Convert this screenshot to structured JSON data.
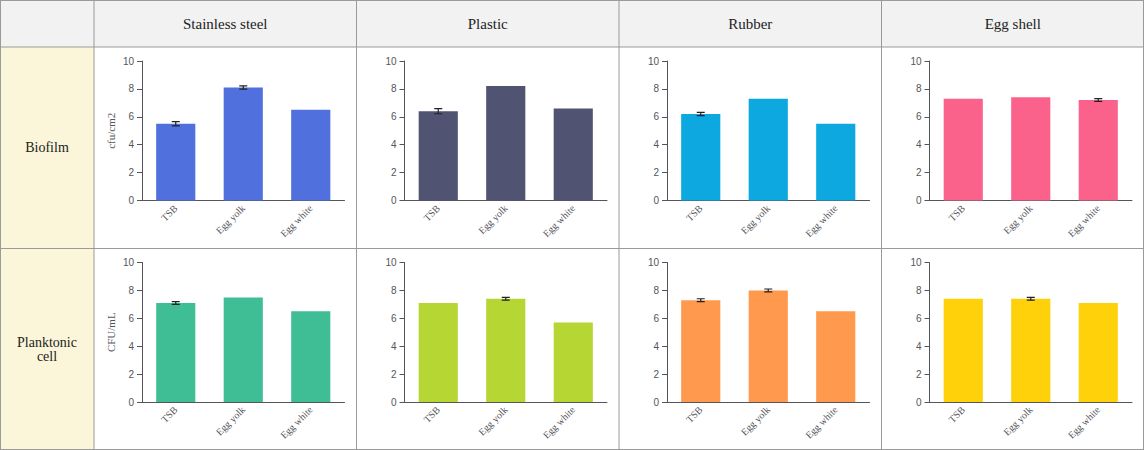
{
  "chart_data": [
    {
      "type": "bar",
      "title": "Stainless steel",
      "annotations": [
        "Biofilm"
      ],
      "ylabel": "cfu/cm2",
      "categories": [
        "TSB",
        "Egg yolk",
        "Egg white"
      ],
      "values": [
        5.5,
        8.1,
        6.5
      ],
      "errors": [
        0.15,
        0.12,
        0.0
      ],
      "ylim": [
        0,
        10
      ],
      "yticks": [
        0,
        2,
        4,
        6,
        8,
        10
      ],
      "grid": false
    },
    {
      "type": "bar",
      "title": "Plastic",
      "categories": [
        "TSB",
        "Egg yolk",
        "Egg white"
      ],
      "values": [
        6.4,
        8.2,
        6.6
      ],
      "errors": [
        0.18,
        0.0,
        0.0
      ],
      "ylim": [
        0,
        10
      ],
      "yticks": [
        0,
        2,
        4,
        6,
        8,
        10
      ],
      "grid": false
    },
    {
      "type": "bar",
      "title": "Rubber",
      "categories": [
        "TSB",
        "Egg yolk",
        "Egg white"
      ],
      "values": [
        6.2,
        7.3,
        5.5
      ],
      "errors": [
        0.12,
        0.0,
        0.0
      ],
      "ylim": [
        0,
        10
      ],
      "yticks": [
        0,
        2,
        4,
        6,
        8,
        10
      ],
      "grid": false
    },
    {
      "type": "bar",
      "title": "Egg shell",
      "categories": [
        "TSB",
        "Egg yolk",
        "Egg white"
      ],
      "values": [
        7.3,
        7.4,
        7.2
      ],
      "errors": [
        0.0,
        0.0,
        0.1
      ],
      "ylim": [
        0,
        10
      ],
      "yticks": [
        0,
        2,
        4,
        6,
        8,
        10
      ],
      "grid": false
    },
    {
      "type": "bar",
      "annotations": [
        "Planktonic\ncell"
      ],
      "ylabel": "CFU/mL",
      "categories": [
        "TSB",
        "Egg yolk",
        "Egg white"
      ],
      "values": [
        7.1,
        7.5,
        6.5
      ],
      "errors": [
        0.1,
        0.0,
        0.0
      ],
      "ylim": [
        0,
        10
      ],
      "yticks": [
        0,
        2,
        4,
        6,
        8,
        10
      ],
      "grid": false
    },
    {
      "type": "bar",
      "categories": [
        "TSB",
        "Egg yolk",
        "Egg white"
      ],
      "values": [
        7.1,
        7.4,
        5.7
      ],
      "errors": [
        0.0,
        0.1,
        0.0
      ],
      "ylim": [
        0,
        10
      ],
      "yticks": [
        0,
        2,
        4,
        6,
        8,
        10
      ],
      "grid": false
    },
    {
      "type": "bar",
      "categories": [
        "TSB",
        "Egg yolk",
        "Egg white"
      ],
      "values": [
        7.3,
        8.0,
        6.5
      ],
      "errors": [
        0.1,
        0.1,
        0.0
      ],
      "ylim": [
        0,
        10
      ],
      "yticks": [
        0,
        2,
        4,
        6,
        8,
        10
      ],
      "grid": false
    },
    {
      "type": "bar",
      "categories": [
        "TSB",
        "Egg yolk",
        "Egg white"
      ],
      "values": [
        7.4,
        7.4,
        7.1
      ],
      "errors": [
        0.0,
        0.1,
        0.0
      ],
      "ylim": [
        0,
        10
      ],
      "yticks": [
        0,
        2,
        4,
        6,
        8,
        10
      ],
      "grid": false
    }
  ]
}
